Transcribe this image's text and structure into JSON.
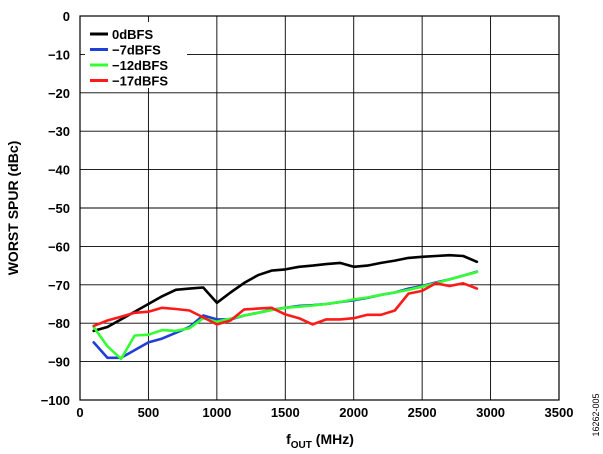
{
  "chart_data": {
    "type": "line",
    "xlabel_main": "f",
    "xlabel_sub": "OUT",
    "xlabel_unit": " (MHz)",
    "ylabel": "WORST SPUR (dBc)",
    "xlim": [
      0,
      3500
    ],
    "ylim": [
      -100,
      0
    ],
    "xticks": [
      0,
      500,
      1000,
      1500,
      2000,
      2500,
      3000,
      3500
    ],
    "yticks": [
      0,
      -10,
      -20,
      -30,
      -40,
      -50,
      -60,
      -70,
      -80,
      -90,
      -100
    ],
    "xtick_labels": [
      "0",
      "500",
      "1000",
      "1500",
      "2000",
      "2500",
      "3000",
      "3500"
    ],
    "ytick_labels": [
      "0",
      "−10",
      "−20",
      "−30",
      "−40",
      "−50",
      "−60",
      "−70",
      "−80",
      "−90",
      "−100"
    ],
    "grid": true,
    "legend_position": "top-left",
    "figure_id": "16262-005",
    "series": [
      {
        "name": "0dBFS",
        "color": "#000000",
        "x": [
          100,
          200,
          300,
          400,
          500,
          600,
          700,
          800,
          900,
          1000,
          1100,
          1200,
          1300,
          1400,
          1500,
          1600,
          1700,
          1800,
          1900,
          2000,
          2100,
          2200,
          2300,
          2400,
          2500,
          2600,
          2700,
          2800,
          2900
        ],
        "y": [
          -82,
          -81,
          -79,
          -77,
          -75,
          -73,
          -71.3,
          -71,
          -70.7,
          -74.7,
          -72,
          -69.5,
          -67.5,
          -66.3,
          -66,
          -65.3,
          -65,
          -64.6,
          -64.3,
          -65.3,
          -65,
          -64.3,
          -63.7,
          -63,
          -62.7,
          -62.5,
          -62.3,
          -62.5,
          -64
        ]
      },
      {
        "name": "−7dBFS",
        "color": "#1f3fd6",
        "x": [
          100,
          200,
          300,
          400,
          500,
          600,
          700,
          800,
          900,
          1000,
          1100,
          1200,
          1300,
          1400,
          1500,
          1600,
          1700,
          1800,
          1900,
          2000,
          2100,
          2200,
          2300,
          2400,
          2500,
          2600,
          2700,
          2800,
          2900
        ],
        "y": [
          -85,
          -89,
          -89,
          -87,
          -85,
          -84,
          -82.5,
          -81,
          -78,
          -79,
          -79,
          -78,
          -77.3,
          -76.5,
          -76,
          -75.5,
          -75.3,
          -75,
          -74.5,
          -74,
          -73.4,
          -72.6,
          -72,
          -71,
          -70.3,
          -69.4,
          -68.6,
          -67.6,
          -66.6
        ]
      },
      {
        "name": "−12dBFS",
        "color": "#33ff33",
        "x": [
          100,
          200,
          300,
          400,
          500,
          600,
          700,
          800,
          900,
          1000,
          1100,
          1200,
          1300,
          1400,
          1500,
          1600,
          1700,
          1800,
          1900,
          2000,
          2100,
          2200,
          2300,
          2400,
          2500,
          2600,
          2700,
          2800,
          2900
        ],
        "y": [
          -81,
          -86,
          -89.3,
          -83.2,
          -83,
          -81.8,
          -82,
          -81.3,
          -78.7,
          -79.6,
          -78.8,
          -78,
          -77.3,
          -76.6,
          -76,
          -75.7,
          -75.4,
          -75,
          -74.5,
          -73.8,
          -73.3,
          -72.6,
          -72,
          -71.3,
          -70.5,
          -69.6,
          -68.6,
          -67.6,
          -66.7
        ]
      },
      {
        "name": "−17dBFS",
        "color": "#ff1a1a",
        "x": [
          100,
          200,
          300,
          400,
          500,
          600,
          700,
          800,
          900,
          1000,
          1100,
          1200,
          1300,
          1400,
          1500,
          1600,
          1700,
          1800,
          1900,
          2000,
          2100,
          2200,
          2300,
          2400,
          2500,
          2600,
          2700,
          2800,
          2900
        ],
        "y": [
          -80.7,
          -79.3,
          -78.3,
          -77.3,
          -77,
          -76,
          -76.3,
          -76.7,
          -78.5,
          -80.3,
          -79.3,
          -76.4,
          -76.2,
          -76,
          -77.7,
          -78.7,
          -80.3,
          -79,
          -79,
          -78.7,
          -77.8,
          -77.8,
          -76.7,
          -72.3,
          -71.6,
          -69.6,
          -70.3,
          -69.6,
          -71
        ]
      }
    ]
  }
}
